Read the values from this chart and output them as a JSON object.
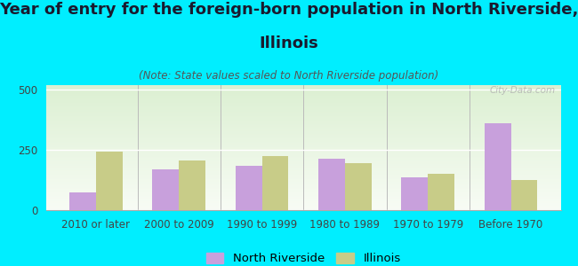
{
  "title_line1": "Year of entry for the foreign-born population in North Riverside,",
  "title_line2": "Illinois",
  "subtitle": "(Note: State values scaled to North Riverside population)",
  "categories": [
    "2010 or later",
    "2000 to 2009",
    "1990 to 1999",
    "1980 to 1989",
    "1970 to 1979",
    "Before 1970"
  ],
  "north_riverside": [
    75,
    170,
    185,
    215,
    135,
    360
  ],
  "illinois": [
    245,
    205,
    225,
    195,
    150,
    125
  ],
  "nr_color": "#c8a0dc",
  "il_color": "#c8cc88",
  "bg_color": "#00eeff",
  "ylim": [
    0,
    520
  ],
  "yticks": [
    0,
    250,
    500
  ],
  "title_fontsize": 13,
  "subtitle_fontsize": 8.5,
  "legend_fontsize": 9.5,
  "axis_fontsize": 8.5,
  "watermark": "City-Data.com",
  "nr_label": "North Riverside",
  "il_label": "Illinois"
}
